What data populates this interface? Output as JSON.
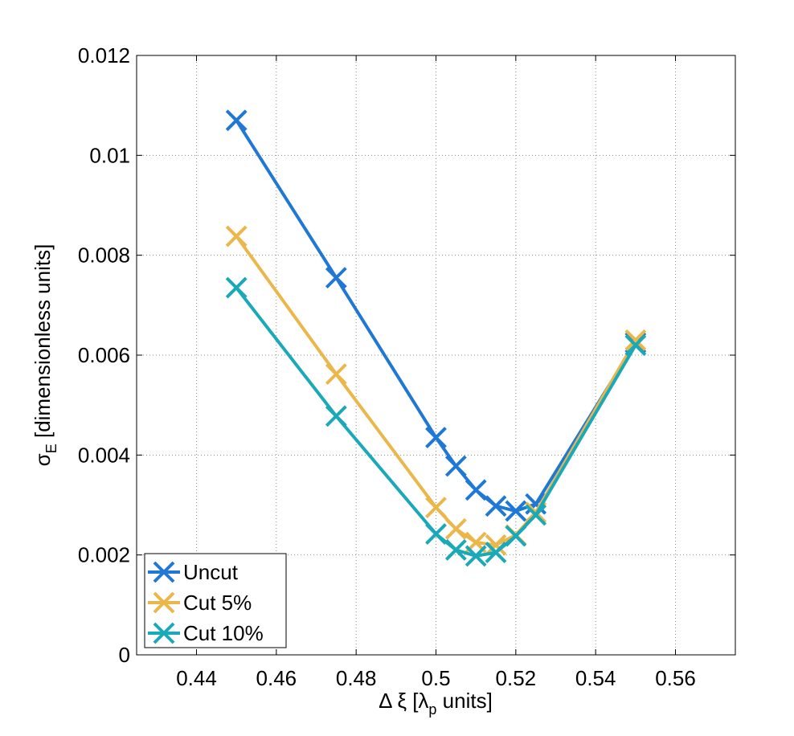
{
  "chart_data": {
    "type": "line",
    "xlabel": {
      "prefix": "Δ ξ [λ",
      "sub": "p",
      "suffix": " units]"
    },
    "ylabel": {
      "prefix": "σ",
      "sub": "E",
      "suffix": " [dimensionless units]"
    },
    "xlim": [
      0.425,
      0.575
    ],
    "ylim": [
      0,
      0.012
    ],
    "xticks": [
      0.44,
      0.46,
      0.48,
      0.5,
      0.52,
      0.54,
      0.56
    ],
    "xtick_labels": [
      "0.44",
      "0.46",
      "0.48",
      "0.5",
      "0.52",
      "0.54",
      "0.56"
    ],
    "yticks": [
      0,
      0.002,
      0.004,
      0.006,
      0.008,
      0.01,
      0.012
    ],
    "ytick_labels": [
      "0",
      "0.002",
      "0.004",
      "0.006",
      "0.008",
      "0.01",
      "0.012"
    ],
    "grid": true,
    "legend_position": "bottom-left",
    "marker": "x",
    "series": [
      {
        "name": "Uncut",
        "color": "#1f78d6",
        "x": [
          0.45,
          0.475,
          0.5,
          0.505,
          0.51,
          0.515,
          0.52,
          0.525,
          0.55
        ],
        "y": [
          0.0107,
          0.00755,
          0.00435,
          0.00378,
          0.0033,
          0.00298,
          0.00288,
          0.00302,
          0.00625
        ]
      },
      {
        "name": "Cut 5%",
        "color": "#ecb74a",
        "x": [
          0.45,
          0.475,
          0.5,
          0.505,
          0.51,
          0.515,
          0.52,
          0.525,
          0.55
        ],
        "y": [
          0.00838,
          0.00562,
          0.00295,
          0.00252,
          0.00225,
          0.0022,
          0.0024,
          0.00285,
          0.0063
        ]
      },
      {
        "name": "Cut 10%",
        "color": "#1aa9b8",
        "x": [
          0.45,
          0.475,
          0.5,
          0.505,
          0.51,
          0.515,
          0.52,
          0.525,
          0.55
        ],
        "y": [
          0.00735,
          0.00478,
          0.00242,
          0.0021,
          0.00198,
          0.00205,
          0.00238,
          0.0028,
          0.0062
        ]
      }
    ]
  }
}
